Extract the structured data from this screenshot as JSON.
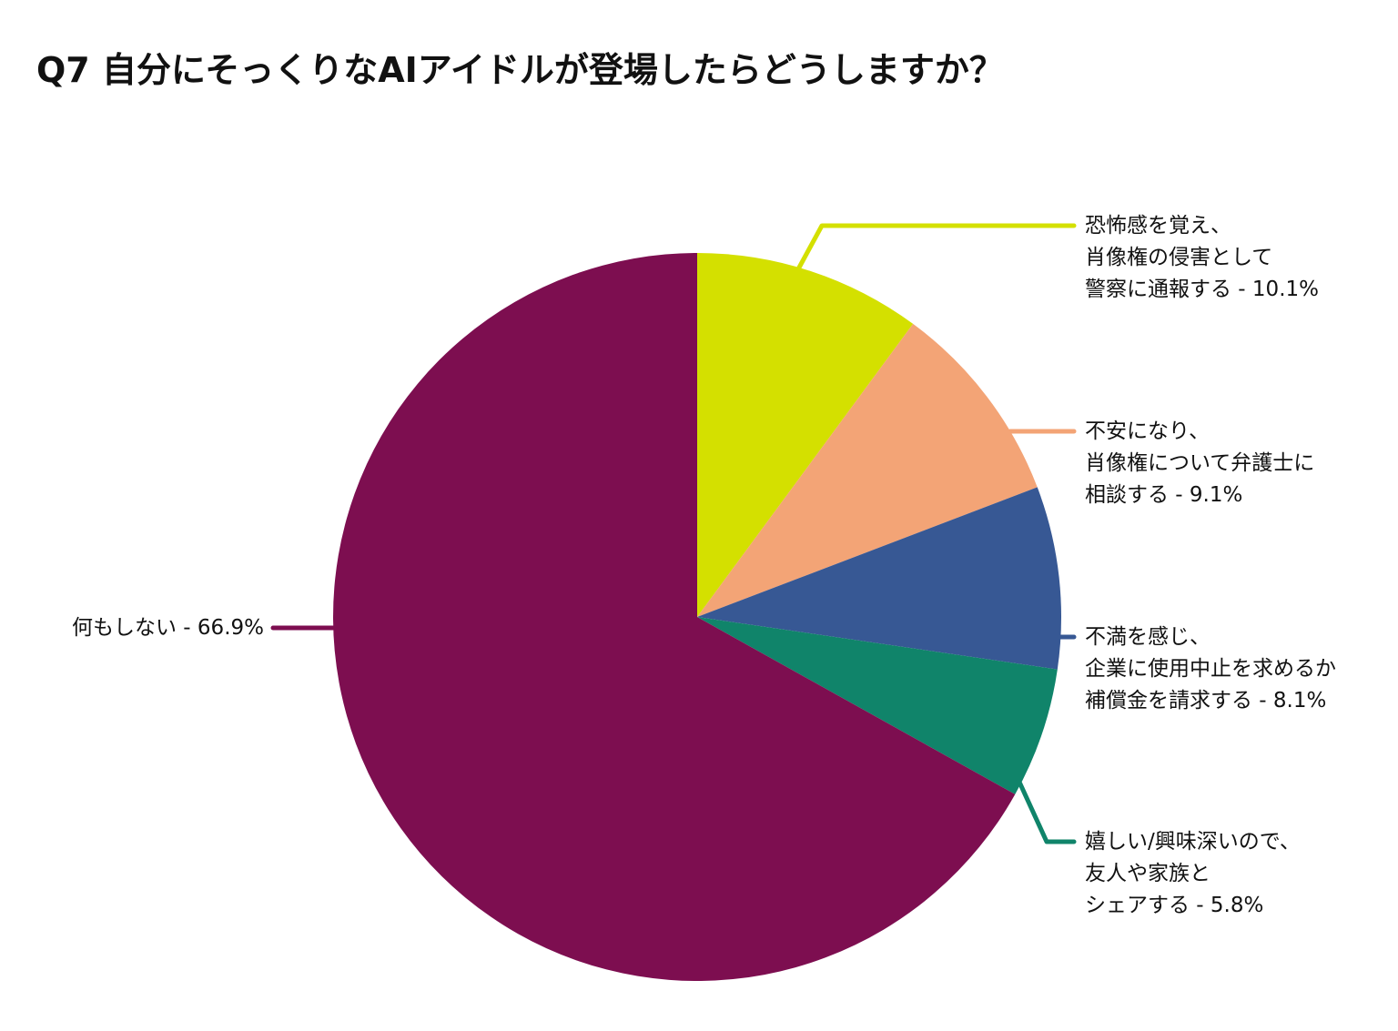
{
  "chart_data": {
    "type": "pie",
    "title": "Q7 自分にそっくりなAIアイドルが登場したらどうしますか？",
    "start": "top",
    "direction": "clockwise",
    "slices": [
      {
        "label": "恐怖感を覚え、\n肖像権の侵害として\n警察に通報する - 10.1%",
        "value": 10.1,
        "color": "#d4e000"
      },
      {
        "label": "不安になり、\n肖像権について弁護士に\n相談する - 9.1%",
        "value": 9.1,
        "color": "#f3a476"
      },
      {
        "label": "不満を感じ、\n企業に使用中止を求めるか\n補償金を請求する - 8.1%",
        "value": 8.1,
        "color": "#375894"
      },
      {
        "label": "嬉しい/興味深いので、\n友人や家族と\nシェアする - 5.8%",
        "value": 5.8,
        "color": "#10846a"
      },
      {
        "label": "何もしない - 66.9%",
        "value": 66.9,
        "color": "#7d0e50"
      }
    ]
  }
}
